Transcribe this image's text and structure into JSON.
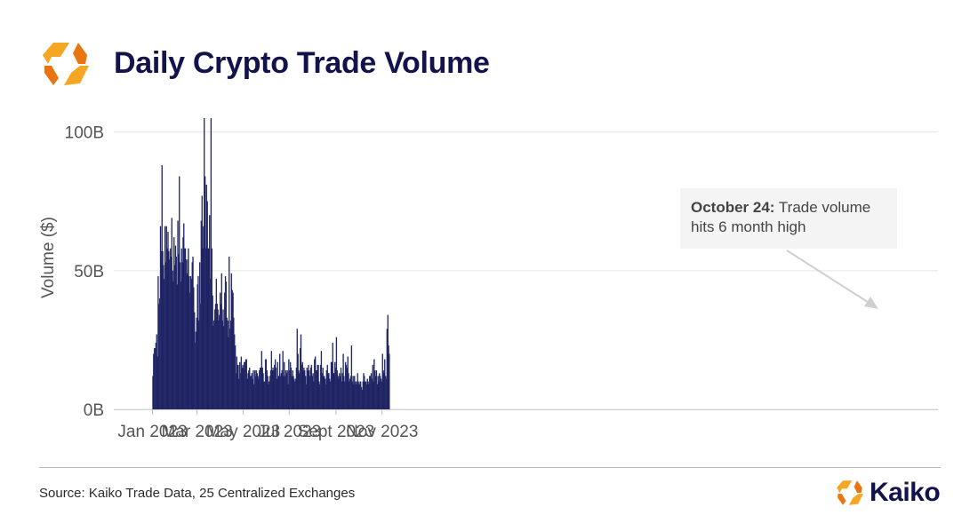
{
  "header": {
    "title": "Daily Crypto Trade Volume"
  },
  "annotation": {
    "bold": "October 24:",
    "text": " Trade volume hits 6 month high"
  },
  "footer": {
    "source": "Source: Kaiko Trade Data, 25 Centralized Exchanges",
    "brand": "Kaiko"
  },
  "colors": {
    "bar_fill": "#181651",
    "bar_edge": "#2e3a7e",
    "title": "#14124a",
    "logo_light": "#f5a623",
    "logo_dark": "#e8750f",
    "grid": "#e6e6e6"
  },
  "icons": [
    "kaiko-logo-icon",
    "annotation-arrow-icon"
  ],
  "chart_data": {
    "type": "bar",
    "title": "",
    "xlabel": "",
    "ylabel": "Volume ($)",
    "ylim": [
      0,
      106
    ],
    "y_ticks": [
      0,
      50,
      100
    ],
    "y_tick_labels": [
      "0B",
      "50B",
      "100B"
    ],
    "x_tick_labels": [
      "Jan 2023",
      "Mar 2023",
      "May 2023",
      "Jul 2023",
      "Sept 2023",
      "Nov 2023"
    ],
    "x_tick_dates": [
      "2023-01-01",
      "2023-03-01",
      "2023-05-01",
      "2023-07-01",
      "2023-09-01",
      "2023-11-01"
    ],
    "start_date": "2023-01-01",
    "unit": "B",
    "grid": true,
    "annotation_date": "2023-10-24",
    "values": [
      12,
      20,
      22,
      22,
      24,
      27,
      19,
      48,
      38,
      40,
      66,
      57,
      88,
      57,
      52,
      47,
      66,
      53,
      66,
      58,
      64,
      57,
      54,
      58,
      55,
      69,
      50,
      46,
      62,
      52,
      59,
      55,
      45,
      68,
      56,
      84,
      53,
      46,
      58,
      53,
      62,
      67,
      58,
      58,
      54,
      49,
      54,
      58,
      48,
      42,
      48,
      47,
      53,
      55,
      44,
      35,
      24,
      28,
      33,
      45,
      48,
      32,
      53,
      38,
      68,
      77,
      58,
      66,
      105,
      84,
      58,
      81,
      75,
      58,
      58,
      70,
      47,
      105,
      58,
      41,
      30,
      32,
      36,
      38,
      47,
      38,
      36,
      32,
      34,
      42,
      38,
      49,
      32,
      36,
      30,
      42,
      48,
      46,
      33,
      32,
      26,
      55,
      29,
      32,
      49,
      43,
      42,
      33,
      27,
      23,
      13,
      19,
      16,
      16,
      11,
      17,
      13,
      19,
      15,
      16,
      15,
      17,
      17,
      18,
      18,
      11,
      13,
      14,
      15,
      12,
      12,
      13,
      11,
      14,
      9,
      14,
      12,
      14,
      13,
      12,
      11,
      14,
      15,
      15,
      21,
      15,
      13,
      10,
      10,
      18,
      18,
      14,
      12,
      9,
      10,
      12,
      14,
      21,
      14,
      15,
      14,
      16,
      18,
      15,
      11,
      17,
      12,
      12,
      20,
      12,
      13,
      14,
      21,
      12,
      17,
      12,
      14,
      13,
      14,
      9,
      18,
      14,
      17,
      15,
      12,
      14,
      12,
      11,
      10,
      11,
      15,
      29,
      20,
      14,
      13,
      22,
      27,
      16,
      17,
      14,
      15,
      14,
      12,
      9,
      15,
      14,
      16,
      14,
      12,
      15,
      16,
      12,
      13,
      10,
      18,
      19,
      14,
      14,
      16,
      16,
      10,
      9,
      16,
      21,
      13,
      15,
      12,
      12,
      11,
      9,
      14,
      16,
      13,
      13,
      11,
      10,
      17,
      17,
      24,
      13,
      13,
      17,
      15,
      26,
      14,
      12,
      11,
      13,
      12,
      15,
      10,
      13,
      20,
      12,
      10,
      17,
      16,
      15,
      19,
      13,
      10,
      11,
      12,
      23,
      10,
      12,
      9,
      12,
      10,
      9,
      10,
      13,
      9,
      10,
      9,
      10,
      8,
      7,
      10,
      13,
      12,
      10,
      10,
      9,
      11,
      10,
      9,
      12,
      12,
      13,
      11,
      16,
      10,
      18,
      14,
      12,
      14,
      9,
      12,
      10,
      13,
      12,
      11,
      10,
      20,
      14,
      13,
      18,
      12,
      11,
      29,
      34,
      23,
      20
    ]
  }
}
